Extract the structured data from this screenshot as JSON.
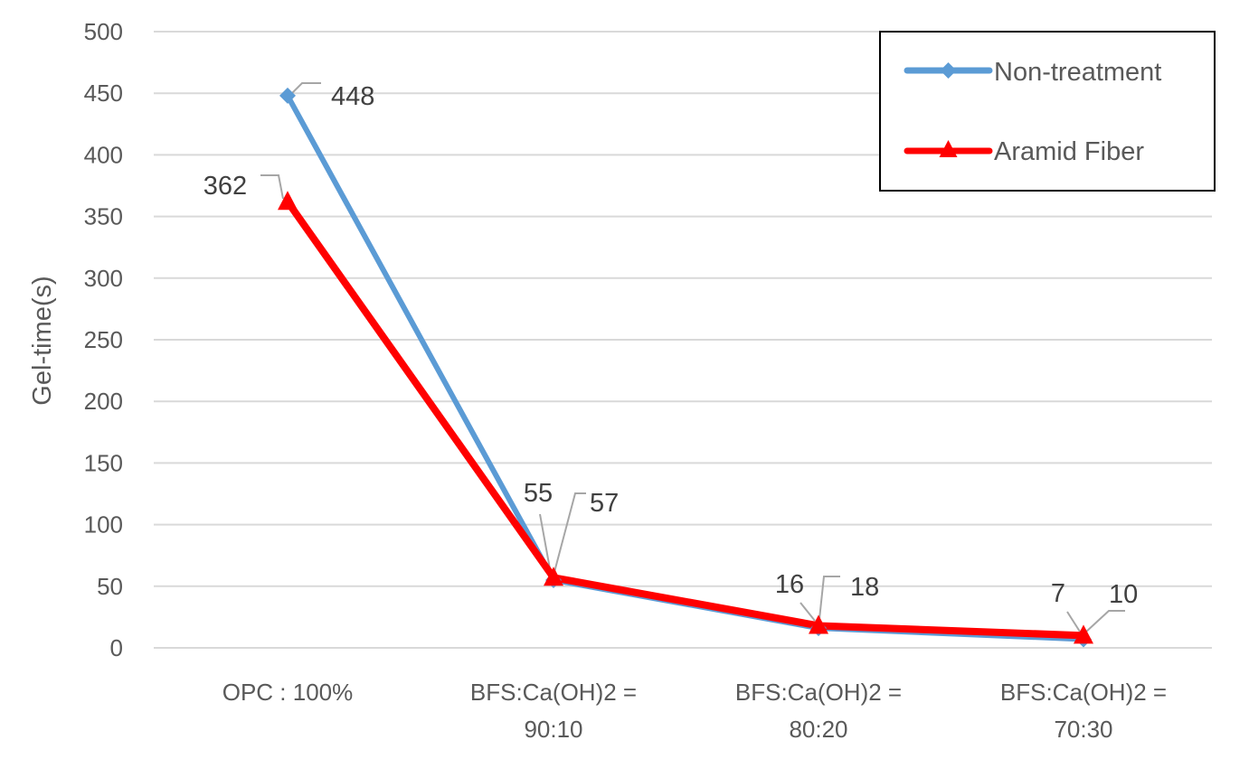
{
  "chart_data": {
    "type": "line",
    "title": "",
    "xlabel": "",
    "ylabel": "Gel-time(s)",
    "ylim": [
      0,
      500
    ],
    "ytick_step": 50,
    "grid": true,
    "legend_position": "top-right",
    "categories": [
      [
        "OPC : 100%"
      ],
      [
        "BFS:Ca(OH)2 =",
        "90:10"
      ],
      [
        "BFS:Ca(OH)2 =",
        "80:20"
      ],
      [
        "BFS:Ca(OH)2 =",
        "70:30"
      ]
    ],
    "series": [
      {
        "name": "Non-treatment",
        "color": "#5B9BD5",
        "marker": "diamond",
        "values": [
          448,
          55,
          16,
          7
        ],
        "labels": [
          "448",
          "55",
          "16",
          "7"
        ]
      },
      {
        "name": "Aramid Fiber",
        "color": "#FF0000",
        "marker": "triangle",
        "values": [
          362,
          57,
          18,
          10
        ],
        "labels": [
          "362",
          "57",
          "18",
          "10"
        ]
      }
    ]
  }
}
